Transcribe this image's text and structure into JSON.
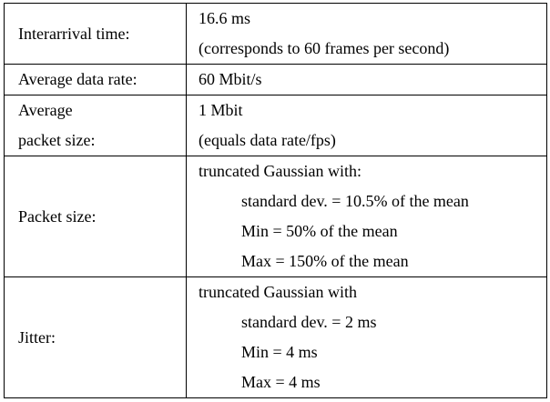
{
  "table": {
    "rows": [
      {
        "label": [
          "Interarrival time:"
        ],
        "lines": [
          "16.6 ms",
          "(corresponds to 60 frames per second)"
        ]
      },
      {
        "label": [
          "Average data rate:"
        ],
        "lines": [
          "60 Mbit/s"
        ]
      },
      {
        "label": [
          "Average",
          "packet size:"
        ],
        "lines": [
          "1 Mbit",
          "(equals data rate/fps)"
        ]
      },
      {
        "label": [
          "Packet size:"
        ],
        "lines": [
          "truncated Gaussian with:"
        ],
        "items": [
          "standard dev. = 10.5% of the mean",
          "Min = 50% of the mean",
          "Max = 150% of the mean"
        ]
      },
      {
        "label": [
          "Jitter:"
        ],
        "lines": [
          "truncated Gaussian with"
        ],
        "items": [
          "standard dev. = 2 ms",
          "Min = 4 ms",
          "Max = 4 ms"
        ]
      }
    ]
  }
}
